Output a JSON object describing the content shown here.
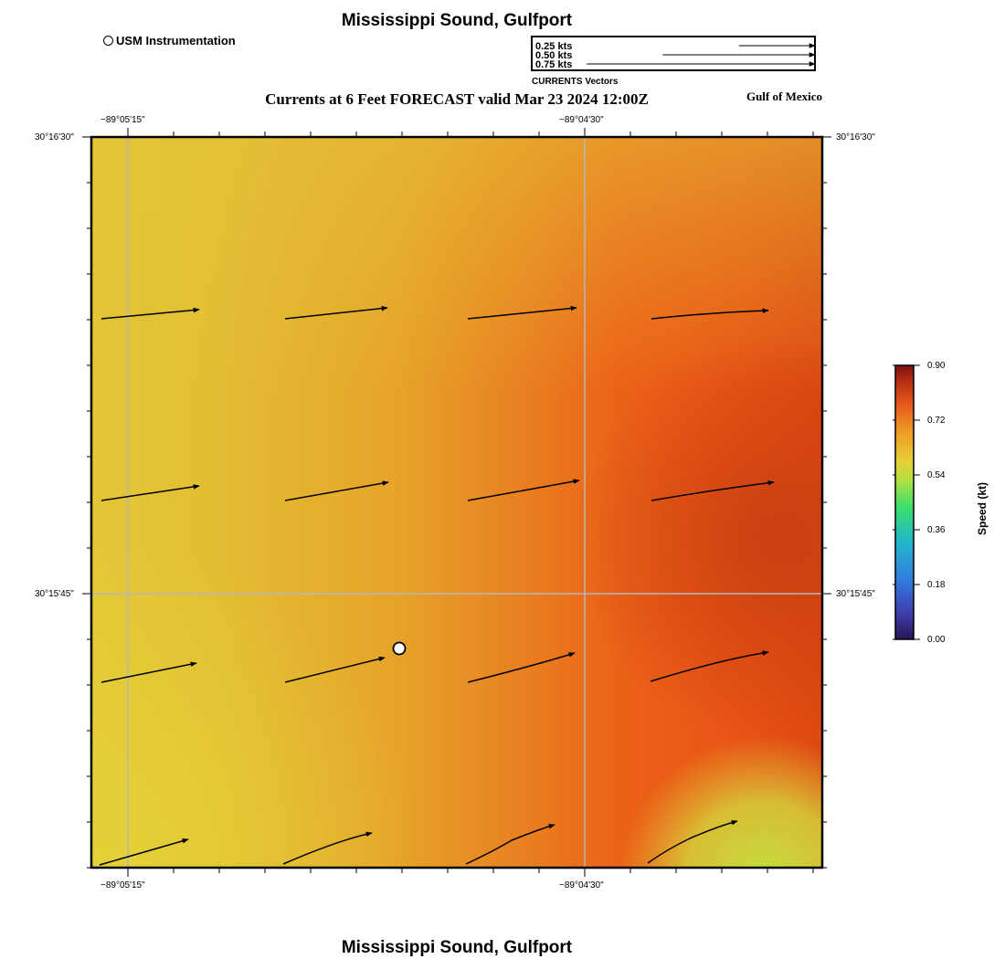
{
  "header": {
    "title": "Mississippi Sound, Gulfport",
    "subtitle": "Currents at 6 Feet FORECAST valid Mar 23 2024 12:00Z",
    "region": "Gulf of Mexico"
  },
  "footer": {
    "title": "Mississippi Sound, Gulfport"
  },
  "station_legend": {
    "label": "USM Instrumentation"
  },
  "vector_key": {
    "caption": "CURRENTS Vectors",
    "entries": [
      {
        "label": "0.25 kts",
        "speed": 0.25
      },
      {
        "label": "0.50 kts",
        "speed": 0.5
      },
      {
        "label": "0.75 kts",
        "speed": 0.75
      }
    ]
  },
  "map": {
    "lon_ticks": [
      "−89°05'15\"",
      "−89°04'30\""
    ],
    "lat_ticks": [
      "30°16'30\"",
      "30°15'45\""
    ],
    "station": {
      "name": "USM Instrumentation"
    }
  },
  "colorbar": {
    "title": "Speed (kt)",
    "min": 0.0,
    "max": 0.9,
    "ticks": [
      "0.90",
      "0.72",
      "0.54",
      "0.36",
      "0.18",
      "0.00"
    ]
  },
  "colors": {
    "yellow": "#e2c635",
    "orange": "#e88a22",
    "red_orange": "#e85515",
    "dark_red": "#c83e10",
    "lime": "#c8dc3a"
  }
}
